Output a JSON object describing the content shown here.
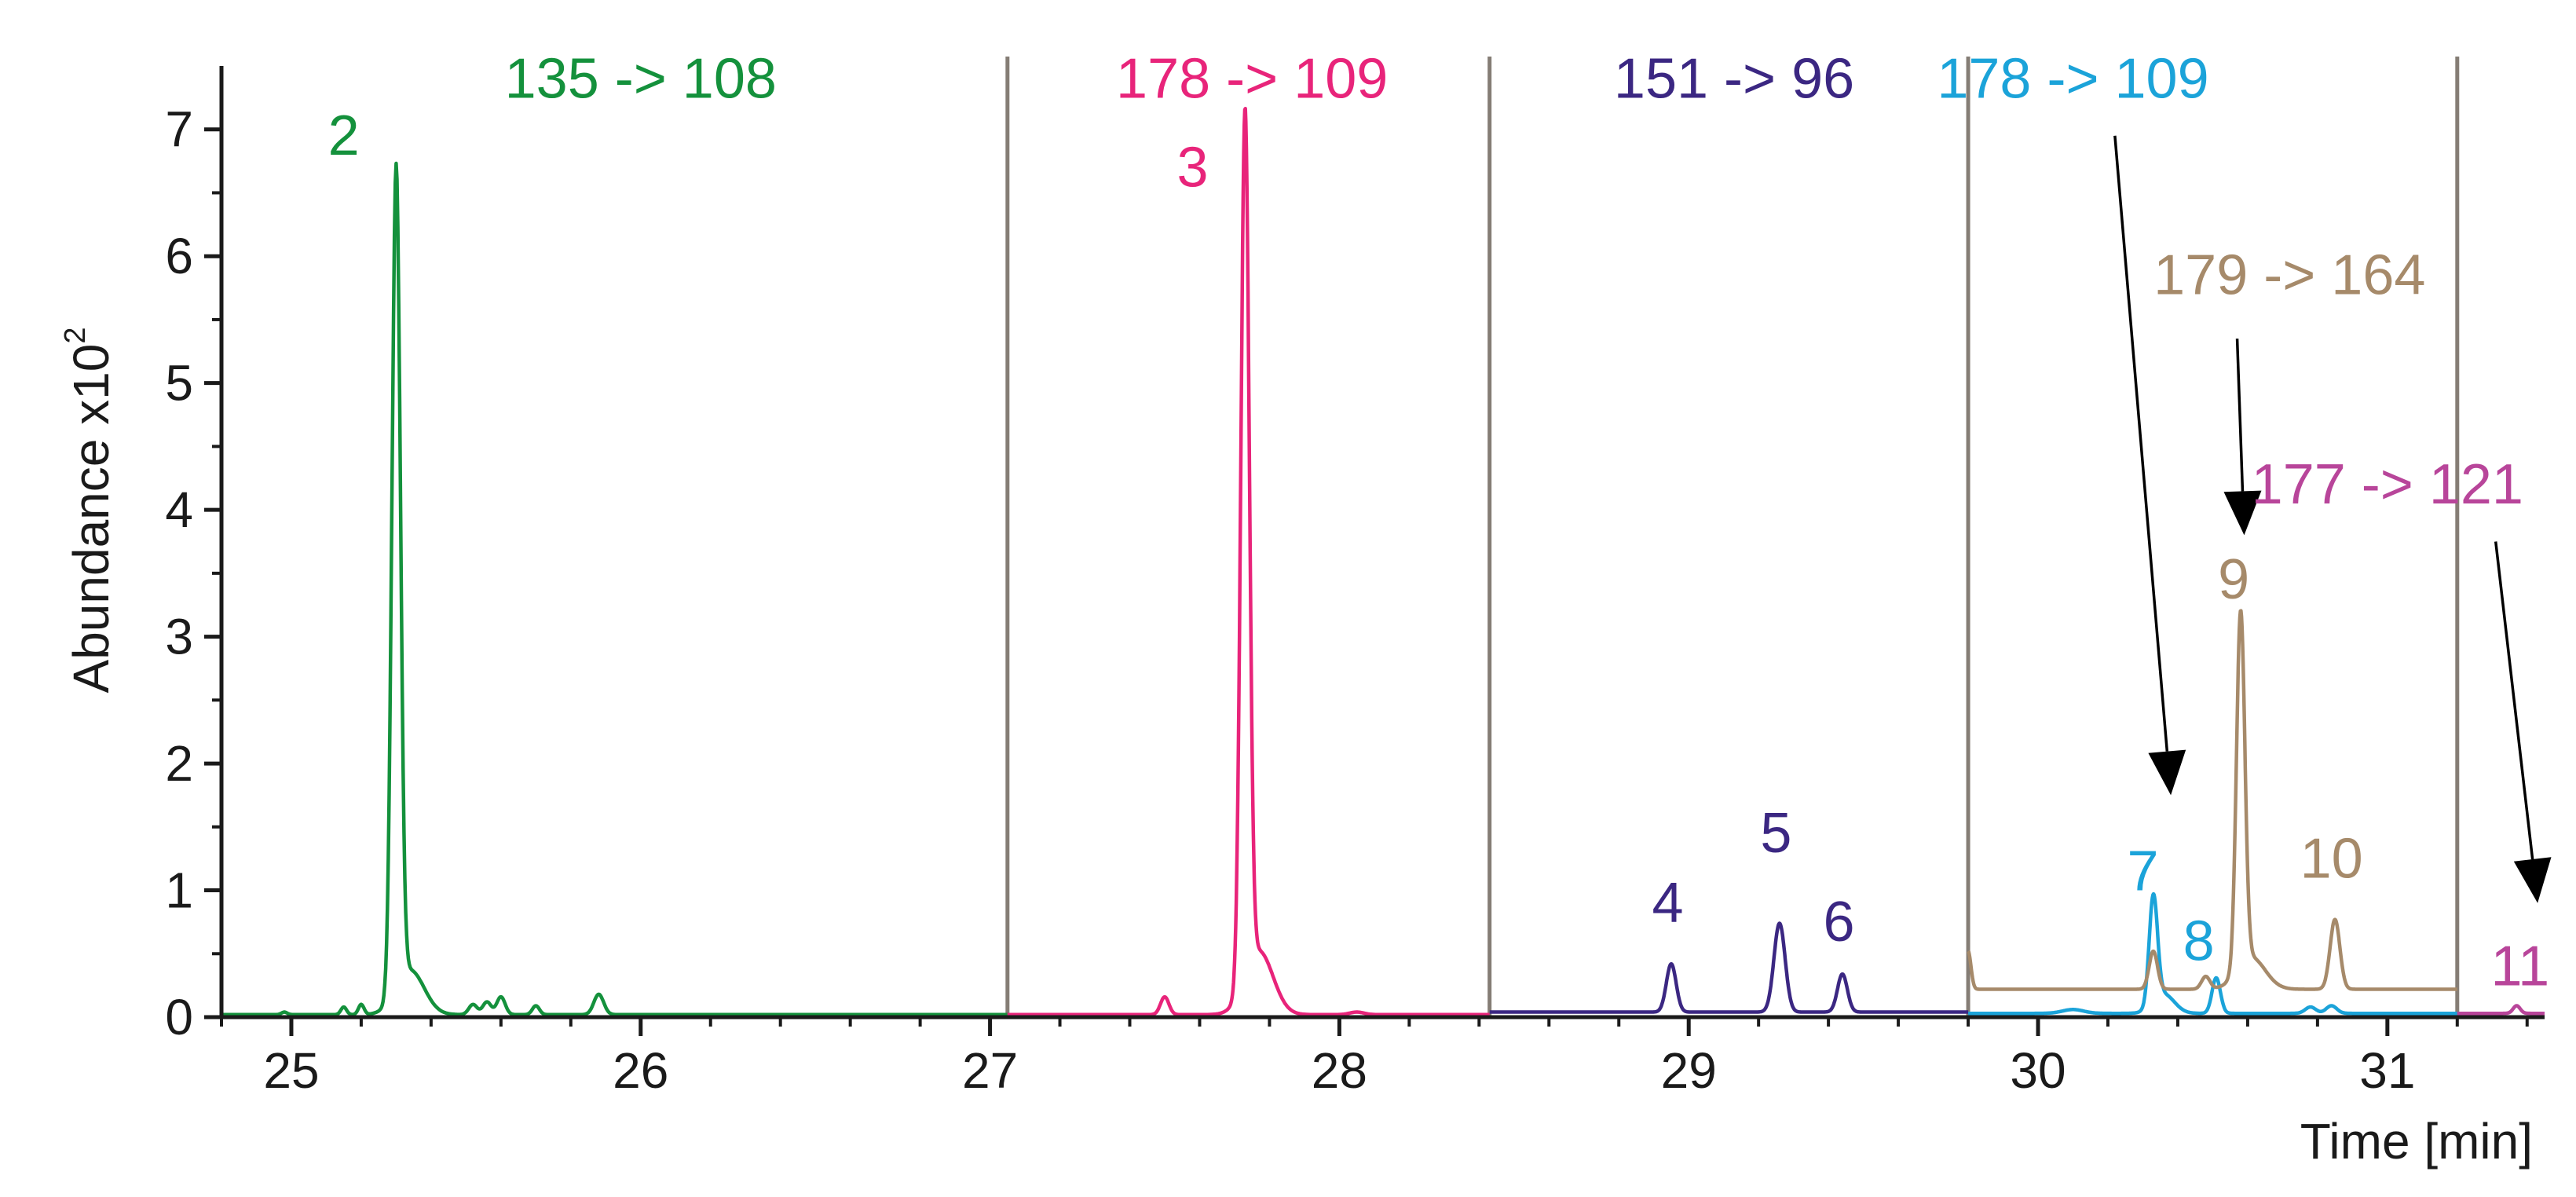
{
  "chart_data": {
    "type": "line",
    "title": "",
    "xlabel": "Time [min]",
    "ylabel": "Abundance x10",
    "ylabel_exponent": "2",
    "xlim": [
      24.8,
      31.45
    ],
    "ylim": [
      0,
      7.5
    ],
    "x_ticks": [
      25,
      26,
      27,
      28,
      29,
      30,
      31
    ],
    "y_ticks": [
      0,
      1,
      2,
      3,
      4,
      5,
      6,
      7
    ],
    "segment_dividers": [
      27.05,
      28.43,
      29.8,
      31.2
    ],
    "baseline_color": "#cccccc",
    "series": [
      {
        "name": "135 -> 108",
        "color": "#14913c",
        "x_range": [
          24.8,
          27.05
        ],
        "baseline": 0.02,
        "peaks": [
          {
            "x": 24.98,
            "h": 0.02,
            "w": 0.008
          },
          {
            "x": 25.15,
            "h": 0.06,
            "w": 0.008
          },
          {
            "x": 25.2,
            "h": 0.08,
            "w": 0.008
          },
          {
            "x": 25.3,
            "h": 6.5,
            "w": 0.012
          },
          {
            "x": 25.34,
            "h": 0.35,
            "w": 0.04
          },
          {
            "x": 25.52,
            "h": 0.08,
            "w": 0.012
          },
          {
            "x": 25.56,
            "h": 0.1,
            "w": 0.012
          },
          {
            "x": 25.6,
            "h": 0.14,
            "w": 0.012
          },
          {
            "x": 25.7,
            "h": 0.07,
            "w": 0.01
          },
          {
            "x": 25.88,
            "h": 0.16,
            "w": 0.014
          }
        ]
      },
      {
        "name": "178 -> 109",
        "color": "#e8247a",
        "x_range": [
          27.05,
          28.43
        ],
        "baseline": 0.02,
        "peaks": [
          {
            "x": 27.5,
            "h": 0.14,
            "w": 0.012
          },
          {
            "x": 27.73,
            "h": 6.85,
            "w": 0.012
          },
          {
            "x": 27.77,
            "h": 0.5,
            "w": 0.04
          },
          {
            "x": 28.05,
            "h": 0.02,
            "w": 0.02
          }
        ]
      },
      {
        "name": "151 -> 96",
        "color": "#3b2782",
        "x_range": [
          28.43,
          29.8
        ],
        "baseline": 0.04,
        "peaks": [
          {
            "x": 28.95,
            "h": 0.38,
            "w": 0.014
          },
          {
            "x": 29.26,
            "h": 0.7,
            "w": 0.016
          },
          {
            "x": 29.44,
            "h": 0.3,
            "w": 0.014
          }
        ]
      },
      {
        "name": "178 -> 109",
        "color": "#1ba3d9",
        "x_range": [
          29.8,
          31.2
        ],
        "baseline": 0.03,
        "peaks": [
          {
            "x": 30.1,
            "h": 0.03,
            "w": 0.03
          },
          {
            "x": 30.33,
            "h": 0.85,
            "w": 0.012
          },
          {
            "x": 30.36,
            "h": 0.15,
            "w": 0.03
          },
          {
            "x": 30.51,
            "h": 0.28,
            "w": 0.012
          },
          {
            "x": 30.78,
            "h": 0.05,
            "w": 0.015
          },
          {
            "x": 30.84,
            "h": 0.06,
            "w": 0.015
          }
        ]
      },
      {
        "name": "179 -> 164",
        "color": "#a68a6a",
        "x_range": [
          29.8,
          31.2
        ],
        "baseline": 0.22,
        "peaks": [
          {
            "x": 29.8,
            "h": 0.3,
            "w": 0.008
          },
          {
            "x": 30.33,
            "h": 0.3,
            "w": 0.012
          },
          {
            "x": 30.48,
            "h": 0.1,
            "w": 0.012
          },
          {
            "x": 30.58,
            "h": 2.8,
            "w": 0.012
          },
          {
            "x": 30.61,
            "h": 0.25,
            "w": 0.04
          },
          {
            "x": 30.85,
            "h": 0.55,
            "w": 0.014
          }
        ]
      },
      {
        "name": "177 -> 121",
        "color": "#b8459a",
        "x_range": [
          31.2,
          31.45
        ],
        "baseline": 0.03,
        "peaks": [
          {
            "x": 31.37,
            "h": 0.06,
            "w": 0.01
          }
        ]
      }
    ],
    "annotations": [
      {
        "text": "135 -> 108",
        "x": 26.0,
        "y": 7.25,
        "color": "#14913c"
      },
      {
        "text": "178 -> 109",
        "x": 27.75,
        "y": 7.25,
        "color": "#e8247a"
      },
      {
        "text": "151 -> 96",
        "x": 29.13,
        "y": 7.25,
        "color": "#3b2782"
      },
      {
        "text": "178 -> 109",
        "x": 30.1,
        "y": 7.25,
        "color": "#1ba3d9"
      },
      {
        "text": "179 -> 164",
        "x": 30.72,
        "y": 5.7,
        "color": "#a68a6a"
      },
      {
        "text": "177 -> 121",
        "x": 31.0,
        "y": 4.05,
        "color": "#b8459a"
      }
    ],
    "arrows": [
      {
        "from": [
          30.22,
          6.95
        ],
        "to": [
          30.38,
          1.75
        ]
      },
      {
        "from": [
          30.57,
          5.35
        ],
        "to": [
          30.59,
          3.8
        ]
      },
      {
        "from": [
          31.31,
          3.75
        ],
        "to": [
          31.43,
          0.9
        ]
      }
    ],
    "peak_labels": [
      {
        "text": "2",
        "x": 25.15,
        "y": 6.8,
        "color": "#14913c"
      },
      {
        "text": "3",
        "x": 27.58,
        "y": 6.55,
        "color": "#e8247a"
      },
      {
        "text": "4",
        "x": 28.94,
        "y": 0.75,
        "color": "#3b2782"
      },
      {
        "text": "5",
        "x": 29.25,
        "y": 1.3,
        "color": "#3b2782"
      },
      {
        "text": "6",
        "x": 29.43,
        "y": 0.6,
        "color": "#3b2782"
      },
      {
        "text": "7",
        "x": 30.3,
        "y": 1.0,
        "color": "#1ba3d9"
      },
      {
        "text": "8",
        "x": 30.46,
        "y": 0.45,
        "color": "#1ba3d9"
      },
      {
        "text": "9",
        "x": 30.56,
        "y": 3.3,
        "color": "#a68a6a"
      },
      {
        "text": "10",
        "x": 30.84,
        "y": 1.1,
        "color": "#a68a6a"
      },
      {
        "text": "11",
        "x": 31.38,
        "y": 0.25,
        "color": "#b8459a"
      }
    ]
  }
}
